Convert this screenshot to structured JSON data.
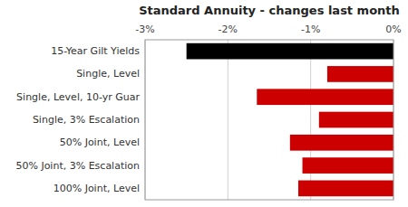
{
  "chart_data": {
    "type": "bar",
    "orientation": "horizontal",
    "title": "Standard Annuity - changes last month",
    "categories": [
      "15-Year Gilt Yields",
      "Single, Level",
      "Single, Level, 10-yr Guar",
      "Single, 3% Escalation",
      "50% Joint, Level",
      "50% Joint, 3% Escalation",
      "100% Joint, Level"
    ],
    "values": [
      -2.5,
      -0.8,
      -1.65,
      -0.9,
      -1.25,
      -1.1,
      -1.15
    ],
    "colors": [
      "#000000",
      "#cc0000",
      "#cc0000",
      "#cc0000",
      "#cc0000",
      "#cc0000",
      "#cc0000"
    ],
    "xlim": [
      -3.0,
      0.0
    ],
    "xticks": [
      {
        "value": -3.0,
        "label": "-3%"
      },
      {
        "value": -2.0,
        "label": "-2%"
      },
      {
        "value": -1.0,
        "label": "-1%"
      },
      {
        "value": 0.0,
        "label": "0%"
      }
    ],
    "grid": true
  }
}
